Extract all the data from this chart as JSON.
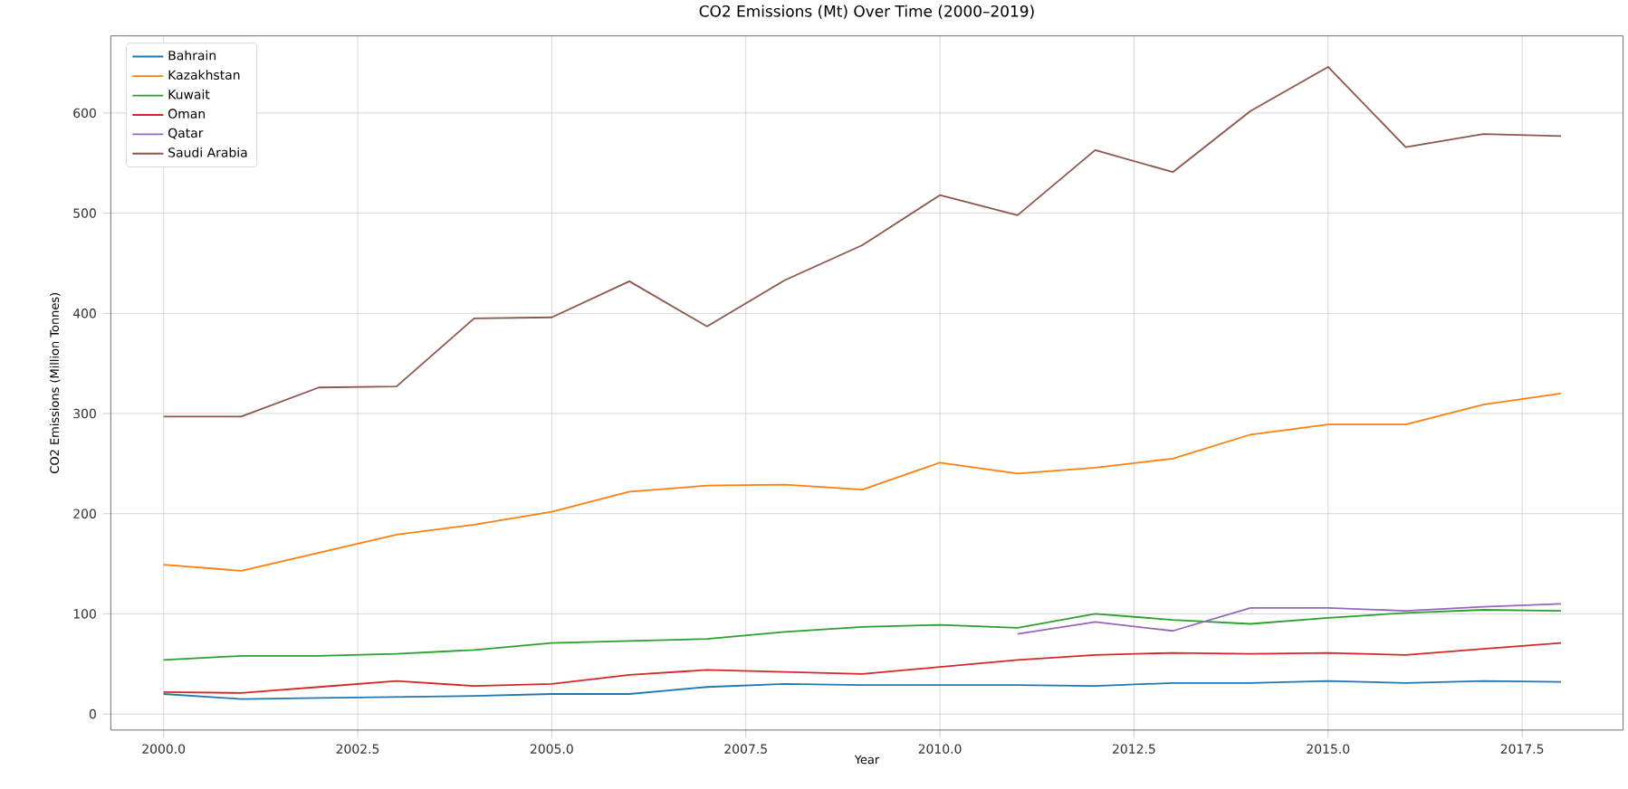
{
  "chart_data": {
    "type": "line",
    "title": "CO2 Emissions (Mt) Over Time (2000–2019)",
    "xlabel": "Year",
    "ylabel": "CO2 Emissions (Million Tonnes)",
    "x": [
      2000,
      2001,
      2002,
      2003,
      2004,
      2005,
      2006,
      2007,
      2008,
      2009,
      2010,
      2011,
      2012,
      2013,
      2014,
      2015,
      2016,
      2017,
      2018
    ],
    "series": [
      {
        "name": "Bahrain",
        "color": "#1f77b4",
        "values": [
          20,
          15,
          16,
          17,
          18,
          20,
          20,
          27,
          30,
          29,
          29,
          29,
          28,
          31,
          31,
          33,
          31,
          33,
          32
        ]
      },
      {
        "name": "Kazakhstan",
        "color": "#ff7f0e",
        "values": [
          149,
          143,
          161,
          179,
          189,
          202,
          222,
          228,
          229,
          224,
          251,
          240,
          246,
          255,
          279,
          289,
          289,
          309,
          320
        ]
      },
      {
        "name": "Kuwait",
        "color": "#2ca02c",
        "values": [
          54,
          58,
          58,
          60,
          64,
          71,
          73,
          75,
          82,
          87,
          89,
          86,
          100,
          94,
          90,
          96,
          101,
          104,
          103
        ]
      },
      {
        "name": "Oman",
        "color": "#d62728",
        "values": [
          22,
          21,
          27,
          33,
          28,
          30,
          39,
          44,
          42,
          40,
          47,
          54,
          59,
          61,
          60,
          61,
          59,
          65,
          71
        ]
      },
      {
        "name": "Qatar",
        "color": "#9467bd",
        "values": [
          null,
          null,
          null,
          null,
          null,
          null,
          null,
          null,
          null,
          null,
          null,
          80,
          92,
          83,
          106,
          106,
          103,
          107,
          110
        ]
      },
      {
        "name": "Saudi Arabia",
        "color": "#8c564b",
        "values": [
          297,
          297,
          326,
          327,
          395,
          396,
          432,
          387,
          433,
          468,
          518,
          498,
          563,
          541,
          602,
          646,
          566,
          579,
          577
        ]
      }
    ],
    "xlim": [
      1999.32,
      2018.8
    ],
    "ylim": [
      -16,
      677
    ],
    "xticks": [
      {
        "value": 2000,
        "label": "2000.0"
      },
      {
        "value": 2002.5,
        "label": "2002.5"
      },
      {
        "value": 2005,
        "label": "2005.0"
      },
      {
        "value": 2007.5,
        "label": "2007.5"
      },
      {
        "value": 2010,
        "label": "2010.0"
      },
      {
        "value": 2012.5,
        "label": "2012.5"
      },
      {
        "value": 2015,
        "label": "2015.0"
      },
      {
        "value": 2017.5,
        "label": "2017.5"
      }
    ],
    "yticks": [
      0,
      100,
      200,
      300,
      400,
      500,
      600
    ],
    "grid": true,
    "legend": "top left",
    "line_style": "solid",
    "marker": "none"
  }
}
